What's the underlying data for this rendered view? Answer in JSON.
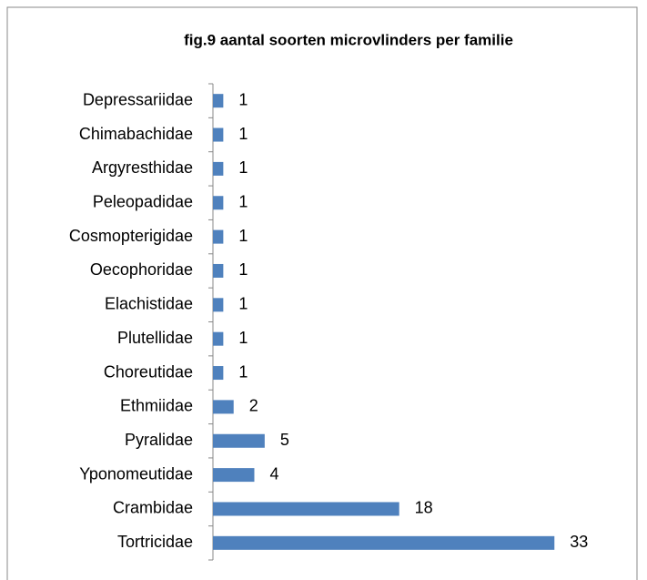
{
  "chart_data": {
    "type": "bar",
    "orientation": "horizontal",
    "title": "fig.9 aantal soorten microvlinders per familie",
    "categories": [
      "Depressariidae",
      "Chimabachidae",
      "Argyresthidae",
      "Peleopadidae",
      "Cosmopterigidae",
      "Oecophoridae",
      "Elachistidae",
      "Plutellidae",
      "Choreutidae",
      "Ethmiidae",
      "Pyralidae",
      "Yponomeutidae",
      "Crambidae",
      "Tortricidae"
    ],
    "values": [
      1,
      1,
      1,
      1,
      1,
      1,
      1,
      1,
      1,
      2,
      5,
      4,
      18,
      33
    ],
    "color": "#4f81bd",
    "xlim": [
      0,
      35
    ]
  }
}
